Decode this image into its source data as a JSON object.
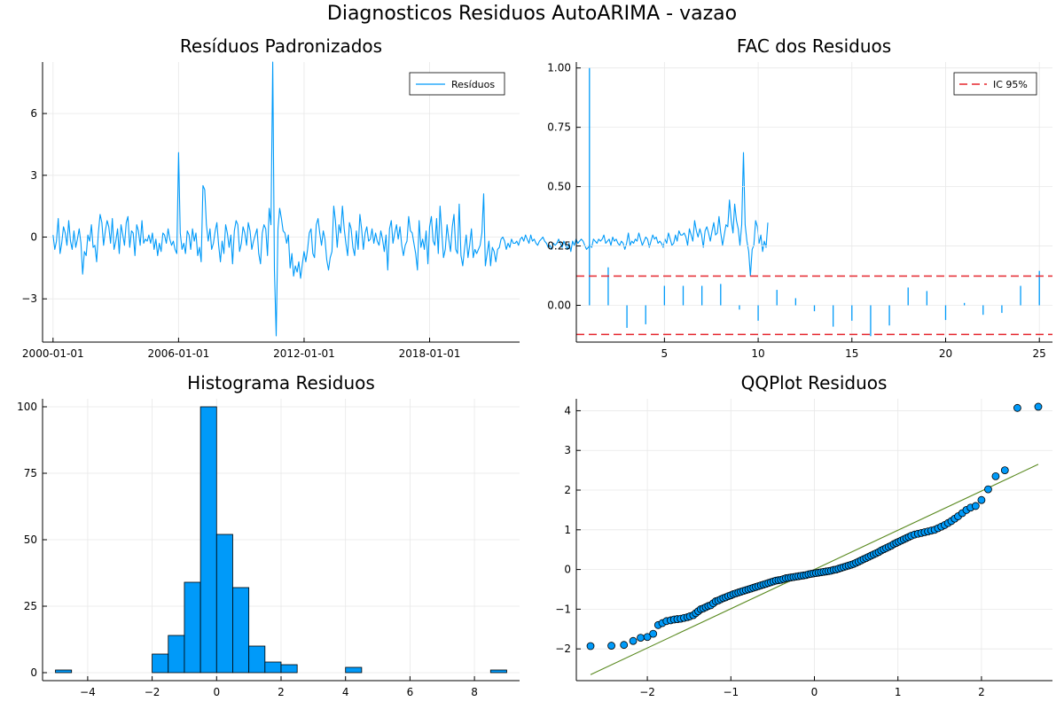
{
  "figure": {
    "title": "Diagnosticos Residuos AutoARIMA - vazao"
  },
  "colors": {
    "series": "#009af9",
    "ci": "#e5252c",
    "refline": "#5a8a20"
  },
  "chart_data": [
    {
      "id": "residuals",
      "type": "line",
      "title": "Resíduos Padronizados",
      "xlabel": "",
      "ylabel": "",
      "xlim": [
        1999.5,
        2022.3
      ],
      "ylim": [
        -5.1,
        8.5
      ],
      "x_ticks": [
        2000,
        2006,
        2012,
        2018
      ],
      "x_tick_labels": [
        "2000-01-01",
        "2006-01-01",
        "2012-01-01",
        "2018-01-01"
      ],
      "y_ticks": [
        -3,
        0,
        3,
        6
      ],
      "y_tick_labels": [
        "−3",
        "0",
        "3",
        "6"
      ],
      "grid": true,
      "legend": {
        "position": "top-right",
        "entries": [
          "Resíduos"
        ]
      },
      "series": [
        {
          "name": "Resíduos",
          "x_start": 2000.0,
          "x_step": 0.08333,
          "values": [
            0.1,
            -0.6,
            -0.2,
            0.9,
            -0.8,
            -0.3,
            0.5,
            0.2,
            -0.4,
            0.8,
            -0.2,
            -0.6,
            0.3,
            -0.5,
            -0.1,
            0.4,
            -0.3,
            -1.8,
            -0.7,
            -0.9,
            0.1,
            -0.2,
            0.6,
            -0.5,
            -0.4,
            -1.2,
            0.2,
            1.1,
            0.7,
            -0.4,
            0.3,
            0.8,
            0.5,
            -0.3,
            0.9,
            -0.6,
            -0.2,
            0.4,
            -0.8,
            0.6,
            0.1,
            -0.4,
            0.7,
            1.0,
            -0.5,
            0.3,
            0.2,
            -0.9,
            0.6,
            0.3,
            -0.4,
            0.8,
            -0.3,
            -0.1,
            -0.2,
            0.1,
            -0.3,
            0.2,
            -0.6,
            -0.1,
            -0.9,
            -0.3,
            -0.7,
            0.2,
            0.1,
            -0.3,
            0.4,
            -0.1,
            -0.4,
            -0.2,
            -0.6,
            -0.8,
            4.1,
            0.2,
            -0.6,
            -0.3,
            -0.8,
            0.3,
            0.1,
            -0.6,
            0.4,
            -0.2,
            0.2,
            -0.9,
            -0.5,
            -1.2,
            2.5,
            2.3,
            0.6,
            -0.2,
            0.4,
            -0.6,
            -0.3,
            0.3,
            0.7,
            -0.4,
            -1.2,
            -0.2,
            -0.8,
            0.6,
            0.2,
            -0.5,
            0.1,
            -1.3,
            0.3,
            0.8,
            0.6,
            -0.7,
            -0.3,
            0.5,
            0.2,
            -0.4,
            0.7,
            0.3,
            -0.6,
            -0.2,
            0.1,
            0.4,
            -0.8,
            -1.3,
            0.2,
            0.6,
            0.4,
            -0.9,
            1.4,
            0.6,
            8.5,
            -1.6,
            -4.8,
            0.4,
            1.4,
            0.9,
            0.3,
            0.2,
            -0.3,
            0.1,
            -1.5,
            -0.8,
            -1.9,
            -1.4,
            -1.7,
            -1.2,
            -2.0,
            -1.3,
            -0.7,
            -1.2,
            -0.6,
            0.2,
            0.4,
            -0.8,
            -1.0,
            0.6,
            0.9,
            0.2,
            -0.4,
            0.3,
            -0.1,
            -1.1,
            -1.6,
            -1.0,
            -0.7,
            1.5,
            0.8,
            -0.5,
            0.6,
            0.2,
            1.5,
            0.4,
            -0.3,
            -0.9,
            0.7,
            0.4,
            -0.5,
            -0.9,
            0.3,
            -0.6,
            1.1,
            0.4,
            -0.6,
            0.2,
            0.5,
            -0.2,
            -0.1,
            0.4,
            -0.3,
            0.2,
            -0.2,
            -0.4,
            0.3,
            -0.1,
            -0.7,
            0.1,
            -1.6,
            0.4,
            0.8,
            -0.3,
            0.2,
            0.6,
            -0.1,
            0.5,
            -0.4,
            -0.9,
            -0.4,
            -0.2,
            1.0,
            0.3,
            0.2,
            -0.3,
            -0.8,
            -1.6,
            0.8,
            -0.5,
            -0.1,
            -0.6,
            0.3,
            -1.3,
            0.5,
            1.0,
            -0.2,
            -0.4,
            0.9,
            -0.8,
            1.5,
            0.2,
            -1.0,
            -0.6,
            0.6,
            -0.1,
            -0.7,
            0.5,
            1.1,
            -0.6,
            -0.8,
            1.6,
            -0.9,
            -1.4,
            -0.6,
            0.1,
            -1.0,
            -0.4,
            0.4,
            -1.0,
            -0.6,
            -0.8,
            -0.6,
            -0.4,
            0.2,
            2.1,
            -1.4,
            -0.8,
            -0.2,
            -1.4,
            -0.5,
            -0.7,
            -1.2,
            -0.6,
            -0.5,
            -0.1,
            0.0,
            -0.2,
            -0.6,
            -0.3,
            -0.5,
            -0.1,
            -0.3,
            -0.3,
            -0.2,
            -0.4,
            -0.1,
            0.0,
            -0.2,
            0.1,
            -0.1,
            -0.3,
            0.1,
            -0.2,
            -0.1,
            -0.3,
            -0.4,
            -0.2,
            -0.1,
            0.0,
            -0.2,
            -0.3,
            -0.5,
            -0.4,
            -0.6,
            -0.3,
            -0.4,
            -0.3,
            -0.1,
            -0.3,
            -0.5,
            -0.2,
            -0.4,
            -0.6,
            -0.3,
            -0.7,
            -0.2,
            -0.4,
            -0.1,
            -0.3,
            -0.2,
            -0.1,
            -0.2,
            -0.4,
            -0.6,
            -0.5,
            -0.4,
            -0.5,
            -0.1,
            -0.2,
            -0.3,
            -0.1,
            -0.2,
            -0.1,
            0.1,
            -0.3,
            -0.2,
            -0.1,
            -0.4,
            0.0,
            -0.2,
            -0.1,
            -0.3,
            -0.4,
            -0.2,
            -0.3,
            -0.6,
            -0.3,
            0.2,
            -0.4,
            -0.2,
            -0.3,
            -0.1,
            -0.2,
            0.2,
            -0.1,
            -0.4,
            -0.2,
            0.0,
            -0.1,
            -0.5,
            -0.2,
            0.1,
            -0.1,
            0.0,
            -0.3,
            -0.2,
            -0.3,
            -0.5,
            -0.1,
            -0.3,
            0.2,
            -0.1,
            -0.4,
            -0.3,
            0.1,
            -0.2,
            0.3,
            0.1,
            0.1,
            0.2,
            0.0,
            -0.4,
            0.4,
            0.1,
            -0.2,
            0.8,
            0.3,
            0.0,
            0.4,
            0.1,
            -0.5,
            0.3,
            0.5,
            0.2,
            -0.2,
            0.3,
            0.7,
            0.1,
            0.2,
            1.0,
            0.2,
            -0.4,
            0.1,
            0.6,
            0.5,
            1.8,
            0.8,
            0.2,
            1.6,
            0.8,
            0.4,
            -0.4,
            0.6,
            4.1,
            0.6,
            -0.2,
            -0.7,
            -1.9,
            -0.6,
            -0.4,
            0.8,
            0.5,
            -0.3,
            0.1,
            -0.7,
            -0.2,
            -0.5,
            0.7
          ]
        }
      ]
    },
    {
      "id": "acf",
      "type": "bar",
      "title": "FAC dos Residuos",
      "xlabel": "",
      "ylabel": "",
      "xlim": [
        0.3,
        25.7
      ],
      "ylim": [
        -0.155,
        1.025
      ],
      "x_ticks": [
        5,
        10,
        15,
        20,
        25
      ],
      "y_ticks": [
        0.0,
        0.25,
        0.5,
        0.75,
        1.0
      ],
      "y_tick_labels": [
        "0.00",
        "0.25",
        "0.50",
        "0.75",
        "1.00"
      ],
      "grid": true,
      "legend": {
        "position": "top-right",
        "entries": [
          "IC 95%"
        ]
      },
      "lags": [
        1,
        2,
        3,
        4,
        5,
        6,
        7,
        8,
        9,
        10,
        11,
        12,
        13,
        14,
        15,
        16,
        17,
        18,
        19,
        20,
        21,
        22,
        23,
        24,
        25
      ],
      "values": [
        1.0,
        0.16,
        -0.095,
        -0.08,
        0.082,
        0.082,
        0.082,
        0.09,
        -0.018,
        -0.065,
        0.065,
        0.03,
        -0.025,
        -0.09,
        -0.065,
        -0.13,
        -0.085,
        0.075,
        0.06,
        -0.062,
        0.01,
        -0.04,
        -0.032,
        0.082,
        0.145
      ],
      "ci_band": [
        -0.123,
        0.123
      ],
      "ci_name": "IC 95%"
    },
    {
      "id": "histogram",
      "type": "bar",
      "title": "Histograma Residuos",
      "xlabel": "",
      "ylabel": "",
      "xlim": [
        -5.4,
        9.4
      ],
      "ylim": [
        -3,
        103
      ],
      "x_ticks": [
        -4,
        -2,
        0,
        2,
        4,
        6,
        8
      ],
      "x_tick_labels": [
        "−4",
        "−2",
        "0",
        "2",
        "4",
        "6",
        "8"
      ],
      "y_ticks": [
        0,
        25,
        50,
        75,
        100
      ],
      "grid": true,
      "bin_width": 0.5,
      "bin_starts": [
        -5.0,
        -4.5,
        -4.0,
        -3.5,
        -3.0,
        -2.5,
        -2.0,
        -1.5,
        -1.0,
        -0.5,
        0.0,
        0.5,
        1.0,
        1.5,
        2.0,
        2.5,
        3.0,
        3.5,
        4.0,
        4.5,
        5.0,
        5.5,
        6.0,
        6.5,
        7.0,
        7.5,
        8.0,
        8.5
      ],
      "counts": [
        1,
        0,
        0,
        0,
        0,
        0,
        7,
        14,
        34,
        100,
        52,
        32,
        10,
        4,
        3,
        0,
        0,
        0,
        2,
        0,
        0,
        0,
        0,
        0,
        0,
        0,
        0,
        1
      ]
    },
    {
      "id": "qqplot",
      "type": "scatter",
      "title": "QQPlot Residuos",
      "xlabel": "",
      "ylabel": "",
      "xlim": [
        -2.85,
        2.85
      ],
      "ylim": [
        -2.8,
        4.3
      ],
      "x_ticks": [
        -2,
        -1,
        0,
        1,
        2
      ],
      "x_tick_labels": [
        "−2",
        "−1",
        "0",
        "1",
        "2"
      ],
      "y_ticks": [
        -2,
        -1,
        0,
        1,
        2,
        3,
        4
      ],
      "y_tick_labels": [
        "−2",
        "−1",
        "0",
        "1",
        "2",
        "3",
        "4"
      ],
      "grid": true,
      "n_points": 260,
      "reference_line": {
        "x": [
          -2.68,
          2.68
        ],
        "y": [
          -2.65,
          2.65
        ]
      },
      "points": [
        [
          -2.68,
          -1.93
        ],
        [
          -2.43,
          -1.92
        ],
        [
          -2.28,
          -1.9
        ],
        [
          -2.17,
          -1.8
        ],
        [
          -2.08,
          -1.72
        ],
        [
          -2.0,
          -1.7
        ],
        [
          -1.93,
          -1.62
        ],
        [
          -1.87,
          -1.4
        ],
        [
          -1.82,
          -1.35
        ],
        [
          -1.77,
          -1.3
        ],
        [
          -1.72,
          -1.28
        ],
        [
          -1.68,
          -1.26
        ],
        [
          -1.64,
          -1.25
        ],
        [
          -1.6,
          -1.24
        ],
        [
          -1.56,
          -1.22
        ],
        [
          -1.52,
          -1.2
        ],
        [
          -1.49,
          -1.18
        ],
        [
          -1.45,
          -1.15
        ],
        [
          -1.42,
          -1.1
        ],
        [
          -1.39,
          -1.05
        ],
        [
          -1.36,
          -1.0
        ],
        [
          -1.33,
          -0.98
        ],
        [
          -1.3,
          -0.95
        ],
        [
          -1.27,
          -0.92
        ],
        [
          -1.24,
          -0.9
        ],
        [
          -1.21,
          -0.85
        ],
        [
          -1.18,
          -0.8
        ],
        [
          -1.15,
          -0.78
        ],
        [
          -1.12,
          -0.75
        ],
        [
          -1.09,
          -0.72
        ],
        [
          -1.06,
          -0.7
        ],
        [
          -1.03,
          -0.67
        ],
        [
          -1.0,
          -0.65
        ],
        [
          -0.97,
          -0.62
        ],
        [
          -0.94,
          -0.6
        ],
        [
          -0.91,
          -0.58
        ],
        [
          -0.88,
          -0.56
        ],
        [
          -0.85,
          -0.54
        ],
        [
          -0.82,
          -0.52
        ],
        [
          -0.79,
          -0.5
        ],
        [
          -0.76,
          -0.48
        ],
        [
          -0.73,
          -0.46
        ],
        [
          -0.7,
          -0.44
        ],
        [
          -0.67,
          -0.42
        ],
        [
          -0.64,
          -0.4
        ],
        [
          -0.61,
          -0.38
        ],
        [
          -0.58,
          -0.36
        ],
        [
          -0.55,
          -0.34
        ],
        [
          -0.52,
          -0.32
        ],
        [
          -0.49,
          -0.3
        ],
        [
          -0.46,
          -0.28
        ],
        [
          -0.43,
          -0.27
        ],
        [
          -0.4,
          -0.26
        ],
        [
          -0.37,
          -0.24
        ],
        [
          -0.34,
          -0.22
        ],
        [
          -0.31,
          -0.21
        ],
        [
          -0.28,
          -0.2
        ],
        [
          -0.25,
          -0.19
        ],
        [
          -0.22,
          -0.18
        ],
        [
          -0.19,
          -0.17
        ],
        [
          -0.16,
          -0.16
        ],
        [
          -0.13,
          -0.15
        ],
        [
          -0.1,
          -0.14
        ],
        [
          -0.07,
          -0.12
        ],
        [
          -0.04,
          -0.11
        ],
        [
          -0.01,
          -0.1
        ],
        [
          0.02,
          -0.09
        ],
        [
          0.05,
          -0.08
        ],
        [
          0.08,
          -0.07
        ],
        [
          0.11,
          -0.06
        ],
        [
          0.14,
          -0.05
        ],
        [
          0.17,
          -0.04
        ],
        [
          0.2,
          -0.03
        ],
        [
          0.23,
          -0.01
        ],
        [
          0.26,
          0.0
        ],
        [
          0.29,
          0.02
        ],
        [
          0.32,
          0.04
        ],
        [
          0.35,
          0.06
        ],
        [
          0.38,
          0.08
        ],
        [
          0.41,
          0.1
        ],
        [
          0.44,
          0.12
        ],
        [
          0.47,
          0.14
        ],
        [
          0.5,
          0.17
        ],
        [
          0.53,
          0.2
        ],
        [
          0.56,
          0.23
        ],
        [
          0.59,
          0.26
        ],
        [
          0.62,
          0.29
        ],
        [
          0.65,
          0.32
        ],
        [
          0.68,
          0.35
        ],
        [
          0.71,
          0.38
        ],
        [
          0.74,
          0.41
        ],
        [
          0.77,
          0.44
        ],
        [
          0.8,
          0.48
        ],
        [
          0.83,
          0.51
        ],
        [
          0.86,
          0.54
        ],
        [
          0.89,
          0.57
        ],
        [
          0.92,
          0.6
        ],
        [
          0.95,
          0.64
        ],
        [
          0.98,
          0.67
        ],
        [
          1.01,
          0.7
        ],
        [
          1.04,
          0.73
        ],
        [
          1.07,
          0.76
        ],
        [
          1.1,
          0.79
        ],
        [
          1.13,
          0.82
        ],
        [
          1.16,
          0.85
        ],
        [
          1.2,
          0.88
        ],
        [
          1.24,
          0.9
        ],
        [
          1.28,
          0.92
        ],
        [
          1.32,
          0.94
        ],
        [
          1.36,
          0.96
        ],
        [
          1.4,
          0.98
        ],
        [
          1.44,
          1.0
        ],
        [
          1.48,
          1.04
        ],
        [
          1.52,
          1.08
        ],
        [
          1.56,
          1.12
        ],
        [
          1.6,
          1.17
        ],
        [
          1.64,
          1.22
        ],
        [
          1.68,
          1.28
        ],
        [
          1.72,
          1.34
        ],
        [
          1.77,
          1.42
        ],
        [
          1.82,
          1.5
        ],
        [
          1.87,
          1.56
        ],
        [
          1.93,
          1.6
        ],
        [
          2.0,
          1.75
        ],
        [
          2.08,
          2.02
        ],
        [
          2.17,
          2.35
        ],
        [
          2.28,
          2.5
        ],
        [
          2.43,
          4.07
        ],
        [
          2.68,
          4.1
        ]
      ]
    }
  ]
}
